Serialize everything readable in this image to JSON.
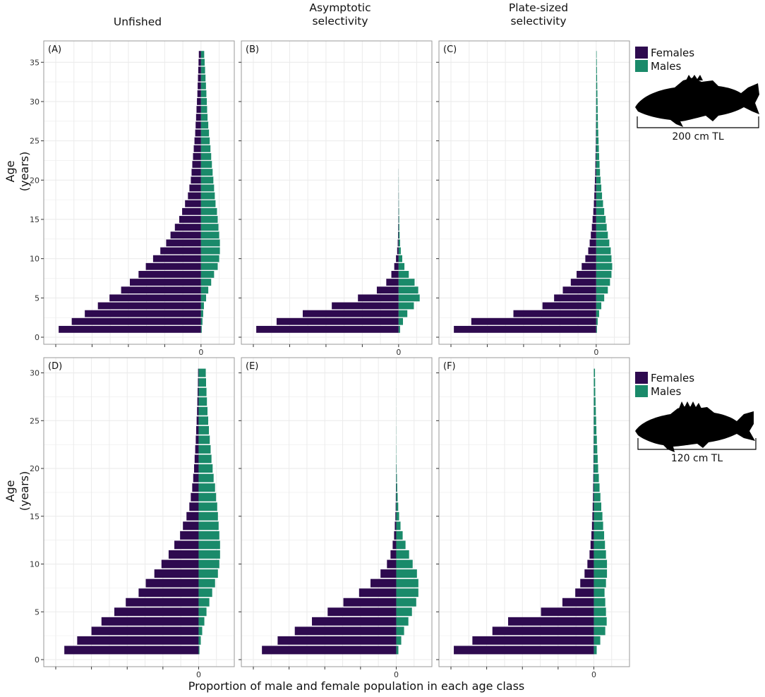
{
  "figure": {
    "column_titles": [
      "Unfished",
      "Asymptotic\nselectivity",
      "Plate-sized\nselectivity"
    ],
    "y_axis_title": [
      "Age",
      "(years)"
    ],
    "x_axis_title": "Proportion of male and female population in each age class",
    "colors": {
      "females": "#2e0a4f",
      "males": "#1a8a6a",
      "grid": "#ebebeb",
      "panel_border": "#9a9a9a"
    },
    "rows": [
      {
        "legend": {
          "females_label": "Females",
          "males_label": "Males"
        },
        "fish": {
          "icon": "large-grouper-silhouette-icon",
          "length_label": "200 cm TL"
        }
      },
      {
        "legend": {
          "females_label": "Females",
          "males_label": "Males"
        },
        "fish": {
          "icon": "small-grouper-silhouette-icon",
          "length_label": "120 cm TL"
        }
      }
    ]
  },
  "chart_data": [
    {
      "id": "A",
      "panel_label": "(A)",
      "type": "bar",
      "orientation": "horizontal-back-to-back",
      "ages": [
        1,
        2,
        3,
        4,
        5,
        6,
        7,
        8,
        9,
        10,
        11,
        12,
        13,
        14,
        15,
        16,
        17,
        18,
        19,
        20,
        21,
        22,
        23,
        24,
        25,
        26,
        27,
        28,
        29,
        30,
        31,
        32,
        33,
        34,
        35,
        36
      ],
      "x_tick_label": "0",
      "y_ticks": [
        0,
        5,
        10,
        15,
        20,
        25,
        30,
        35
      ],
      "ylim": [
        0,
        37
      ],
      "xlim": [
        -0.1,
        0.02
      ],
      "series": [
        {
          "name": "Females",
          "values": [
            0.098,
            0.089,
            0.08,
            0.071,
            0.063,
            0.055,
            0.049,
            0.043,
            0.038,
            0.033,
            0.028,
            0.024,
            0.021,
            0.018,
            0.015,
            0.013,
            0.011,
            0.009,
            0.008,
            0.007,
            0.0065,
            0.006,
            0.0055,
            0.005,
            0.0045,
            0.004,
            0.0037,
            0.0034,
            0.0031,
            0.0028,
            0.0025,
            0.0023,
            0.0021,
            0.0019,
            0.0017,
            0.0015
          ]
        },
        {
          "name": "Males",
          "values": [
            0.0005,
            0.001,
            0.0015,
            0.002,
            0.0035,
            0.005,
            0.007,
            0.009,
            0.0115,
            0.0125,
            0.013,
            0.013,
            0.0125,
            0.012,
            0.0115,
            0.011,
            0.01,
            0.0095,
            0.009,
            0.0085,
            0.008,
            0.0075,
            0.007,
            0.0065,
            0.006,
            0.0055,
            0.005,
            0.0045,
            0.0042,
            0.004,
            0.0037,
            0.0034,
            0.0031,
            0.0028,
            0.0025,
            0.0022
          ]
        }
      ]
    },
    {
      "id": "B",
      "panel_label": "(B)",
      "type": "bar",
      "orientation": "horizontal-back-to-back",
      "ages": [
        1,
        2,
        3,
        4,
        5,
        6,
        7,
        8,
        9,
        10,
        11,
        12,
        13,
        14,
        15,
        16,
        17,
        18,
        19,
        20,
        21,
        22,
        23,
        24,
        25,
        26,
        27,
        28,
        29,
        30,
        31,
        32,
        33,
        34,
        35,
        36
      ],
      "x_tick_label": "0",
      "y_ticks": [
        0,
        5,
        10,
        15,
        20,
        25,
        30,
        35
      ],
      "ylim": [
        0,
        37
      ],
      "xlim": [
        -0.1,
        0.02
      ],
      "series": [
        {
          "name": "Females",
          "values": [
            0.098,
            0.084,
            0.066,
            0.046,
            0.028,
            0.015,
            0.0085,
            0.005,
            0.003,
            0.0018,
            0.001,
            0.0006,
            0.0004,
            0.0003,
            0.0002,
            0.00015,
            0.0001,
            0.0001,
            5e-05,
            4e-05,
            3e-05,
            0,
            0,
            0,
            0,
            0,
            0,
            0,
            0,
            0,
            0,
            0,
            0,
            0,
            0,
            0
          ]
        },
        {
          "name": "Males",
          "values": [
            0.001,
            0.003,
            0.006,
            0.0105,
            0.0145,
            0.0135,
            0.011,
            0.007,
            0.004,
            0.0025,
            0.0015,
            0.001,
            0.0007,
            0.0005,
            0.0004,
            0.0003,
            0.0002,
            0.00015,
            0.0001,
            0.0001,
            5e-05,
            0,
            0,
            0,
            0,
            0,
            0,
            0,
            0,
            0,
            0,
            0,
            0,
            0,
            0,
            0
          ]
        }
      ]
    },
    {
      "id": "C",
      "panel_label": "(C)",
      "type": "bar",
      "orientation": "horizontal-back-to-back",
      "ages": [
        1,
        2,
        3,
        4,
        5,
        6,
        7,
        8,
        9,
        10,
        11,
        12,
        13,
        14,
        15,
        16,
        17,
        18,
        19,
        20,
        21,
        22,
        23,
        24,
        25,
        26,
        27,
        28,
        29,
        30,
        31,
        32,
        33,
        34,
        35,
        36
      ],
      "x_tick_label": "0",
      "y_ticks": [
        0,
        5,
        10,
        15,
        20,
        25,
        30,
        35
      ],
      "ylim": [
        0,
        37
      ],
      "xlim": [
        -0.1,
        0.02
      ],
      "series": [
        {
          "name": "Females",
          "values": [
            0.098,
            0.086,
            0.057,
            0.037,
            0.029,
            0.023,
            0.0175,
            0.0135,
            0.01,
            0.0075,
            0.0055,
            0.0045,
            0.0037,
            0.003,
            0.0025,
            0.002,
            0.0016,
            0.0013,
            0.0011,
            0.0009,
            0.0007,
            0.0006,
            0.0005,
            0.0004,
            0.0003,
            0.00025,
            0.0002,
            0.00015,
            0.0001,
            0.0001,
            5e-05,
            5e-05,
            0,
            0,
            0,
            0
          ]
        },
        {
          "name": "Males",
          "values": [
            0.0005,
            0.001,
            0.002,
            0.0035,
            0.0055,
            0.008,
            0.0095,
            0.0105,
            0.011,
            0.0105,
            0.01,
            0.009,
            0.008,
            0.0072,
            0.0065,
            0.0055,
            0.0047,
            0.004,
            0.0035,
            0.003,
            0.0026,
            0.0023,
            0.002,
            0.0018,
            0.0016,
            0.0014,
            0.0012,
            0.0011,
            0.001,
            0.0009,
            0.0008,
            0.0007,
            0.0006,
            0.0005,
            0.0004,
            0.0003
          ]
        }
      ]
    },
    {
      "id": "D",
      "panel_label": "(D)",
      "type": "bar",
      "orientation": "horizontal-back-to-back",
      "ages": [
        1,
        2,
        3,
        4,
        5,
        6,
        7,
        8,
        9,
        10,
        11,
        12,
        13,
        14,
        15,
        16,
        17,
        18,
        19,
        20,
        21,
        22,
        23,
        24,
        25,
        26,
        27,
        28,
        29,
        30
      ],
      "x_tick_label": "0",
      "y_ticks": [
        0,
        5,
        10,
        15,
        20,
        25,
        30
      ],
      "ylim": [
        0,
        31
      ],
      "xlim": [
        -0.1,
        0.022
      ],
      "series": [
        {
          "name": "Females",
          "values": [
            0.094,
            0.085,
            0.075,
            0.068,
            0.059,
            0.051,
            0.042,
            0.037,
            0.031,
            0.026,
            0.021,
            0.017,
            0.013,
            0.011,
            0.0085,
            0.0065,
            0.0055,
            0.0045,
            0.0038,
            0.0032,
            0.0028,
            0.0024,
            0.002,
            0.0017,
            0.0014,
            0.0011,
            0.0009,
            0.0007,
            0.0005,
            0.0004
          ]
        },
        {
          "name": "Males",
          "values": [
            0.0006,
            0.0015,
            0.0025,
            0.004,
            0.0055,
            0.0075,
            0.0095,
            0.0115,
            0.0135,
            0.0145,
            0.015,
            0.015,
            0.0145,
            0.014,
            0.0135,
            0.013,
            0.0122,
            0.0115,
            0.0105,
            0.0098,
            0.009,
            0.0084,
            0.0078,
            0.0072,
            0.0067,
            0.0062,
            0.0058,
            0.0055,
            0.0052,
            0.005
          ]
        }
      ]
    },
    {
      "id": "E",
      "panel_label": "(E)",
      "type": "bar",
      "orientation": "horizontal-back-to-back",
      "ages": [
        1,
        2,
        3,
        4,
        5,
        6,
        7,
        8,
        9,
        10,
        11,
        12,
        13,
        14,
        15,
        16,
        17,
        18,
        19,
        20,
        21,
        22,
        23,
        24,
        25,
        26,
        27,
        28,
        29,
        30
      ],
      "x_tick_label": "0",
      "y_ticks": [
        0,
        5,
        10,
        15,
        20,
        25,
        30
      ],
      "ylim": [
        0,
        31
      ],
      "xlim": [
        -0.1,
        0.022
      ],
      "series": [
        {
          "name": "Females",
          "values": [
            0.094,
            0.083,
            0.071,
            0.059,
            0.048,
            0.037,
            0.026,
            0.018,
            0.011,
            0.0065,
            0.004,
            0.0025,
            0.0015,
            0.001,
            0.0006,
            0.0004,
            0.0003,
            0.0002,
            0.0001,
            5e-05,
            0,
            0,
            0,
            0,
            0,
            0,
            0,
            0,
            0,
            0
          ]
        },
        {
          "name": "Males",
          "values": [
            0.0015,
            0.0035,
            0.0055,
            0.0085,
            0.011,
            0.014,
            0.0155,
            0.0155,
            0.0145,
            0.0115,
            0.009,
            0.0065,
            0.0045,
            0.003,
            0.002,
            0.0014,
            0.001,
            0.0007,
            0.0005,
            0.0003,
            0.0002,
            0.00015,
            0.0001,
            0.0001,
            5e-05,
            5e-05,
            4e-05,
            3e-05,
            2e-05,
            1e-05
          ]
        }
      ]
    },
    {
      "id": "F",
      "panel_label": "(F)",
      "type": "bar",
      "orientation": "horizontal-back-to-back",
      "ages": [
        1,
        2,
        3,
        4,
        5,
        6,
        7,
        8,
        9,
        10,
        11,
        12,
        13,
        14,
        15,
        16,
        17,
        18,
        19,
        20,
        21,
        22,
        23,
        24,
        25,
        26,
        27,
        28,
        29,
        30
      ],
      "x_tick_label": "0",
      "y_ticks": [
        0,
        5,
        10,
        15,
        20,
        25,
        30
      ],
      "ylim": [
        0,
        31
      ],
      "xlim": [
        -0.1,
        0.022
      ],
      "series": [
        {
          "name": "Females",
          "values": [
            0.098,
            0.085,
            0.071,
            0.06,
            0.037,
            0.022,
            0.013,
            0.0095,
            0.0065,
            0.0045,
            0.003,
            0.0023,
            0.0017,
            0.0013,
            0.001,
            0.0008,
            0.0006,
            0.0005,
            0.0004,
            0.0003,
            0.00025,
            0.0002,
            0.00015,
            0.0001,
            0.0001,
            5e-05,
            5e-05,
            0,
            0,
            0
          ]
        },
        {
          "name": "Males",
          "values": [
            0.002,
            0.0045,
            0.008,
            0.009,
            0.0085,
            0.008,
            0.0075,
            0.0085,
            0.0092,
            0.0092,
            0.0085,
            0.0078,
            0.0072,
            0.0065,
            0.006,
            0.0052,
            0.0046,
            0.004,
            0.0035,
            0.003,
            0.0027,
            0.0024,
            0.0021,
            0.0018,
            0.0016,
            0.0014,
            0.0012,
            0.001,
            0.0009,
            0.0008
          ]
        }
      ]
    }
  ]
}
